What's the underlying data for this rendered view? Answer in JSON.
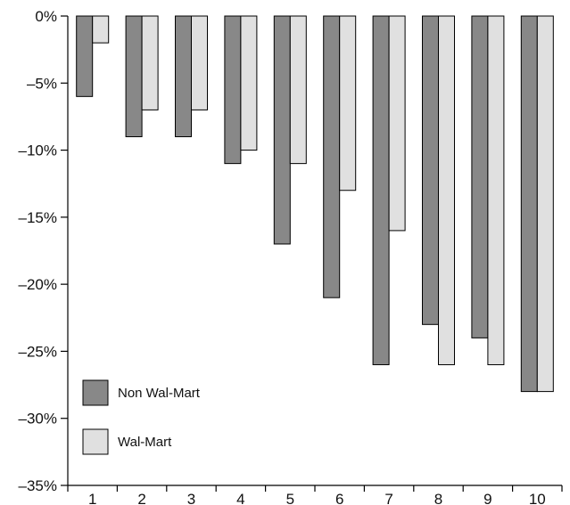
{
  "chart_data": {
    "type": "bar",
    "title": "",
    "xlabel": "",
    "ylabel": "",
    "categories": [
      "1",
      "2",
      "3",
      "4",
      "5",
      "6",
      "7",
      "8",
      "9",
      "10"
    ],
    "series": [
      {
        "name": "Non Wal-Mart",
        "color": "#888888",
        "values": [
          -6,
          -9,
          -9,
          -11,
          -17,
          -21,
          -26,
          -23,
          -24,
          -28
        ]
      },
      {
        "name": "Wal-Mart",
        "color": "#e0e0e0",
        "values": [
          -2,
          -7,
          -7,
          -10,
          -11,
          -13,
          -16,
          -26,
          -26,
          -28
        ]
      }
    ],
    "ylim": [
      -35,
      0
    ],
    "yticks": [
      0,
      -5,
      -10,
      -15,
      -20,
      -25,
      -30,
      -35
    ],
    "ytick_labels": [
      "0%",
      "–5%",
      "–10%",
      "–15%",
      "–20%",
      "–25%",
      "–30%",
      "–35%"
    ],
    "grid": false,
    "legend_position": "bottom-left"
  }
}
